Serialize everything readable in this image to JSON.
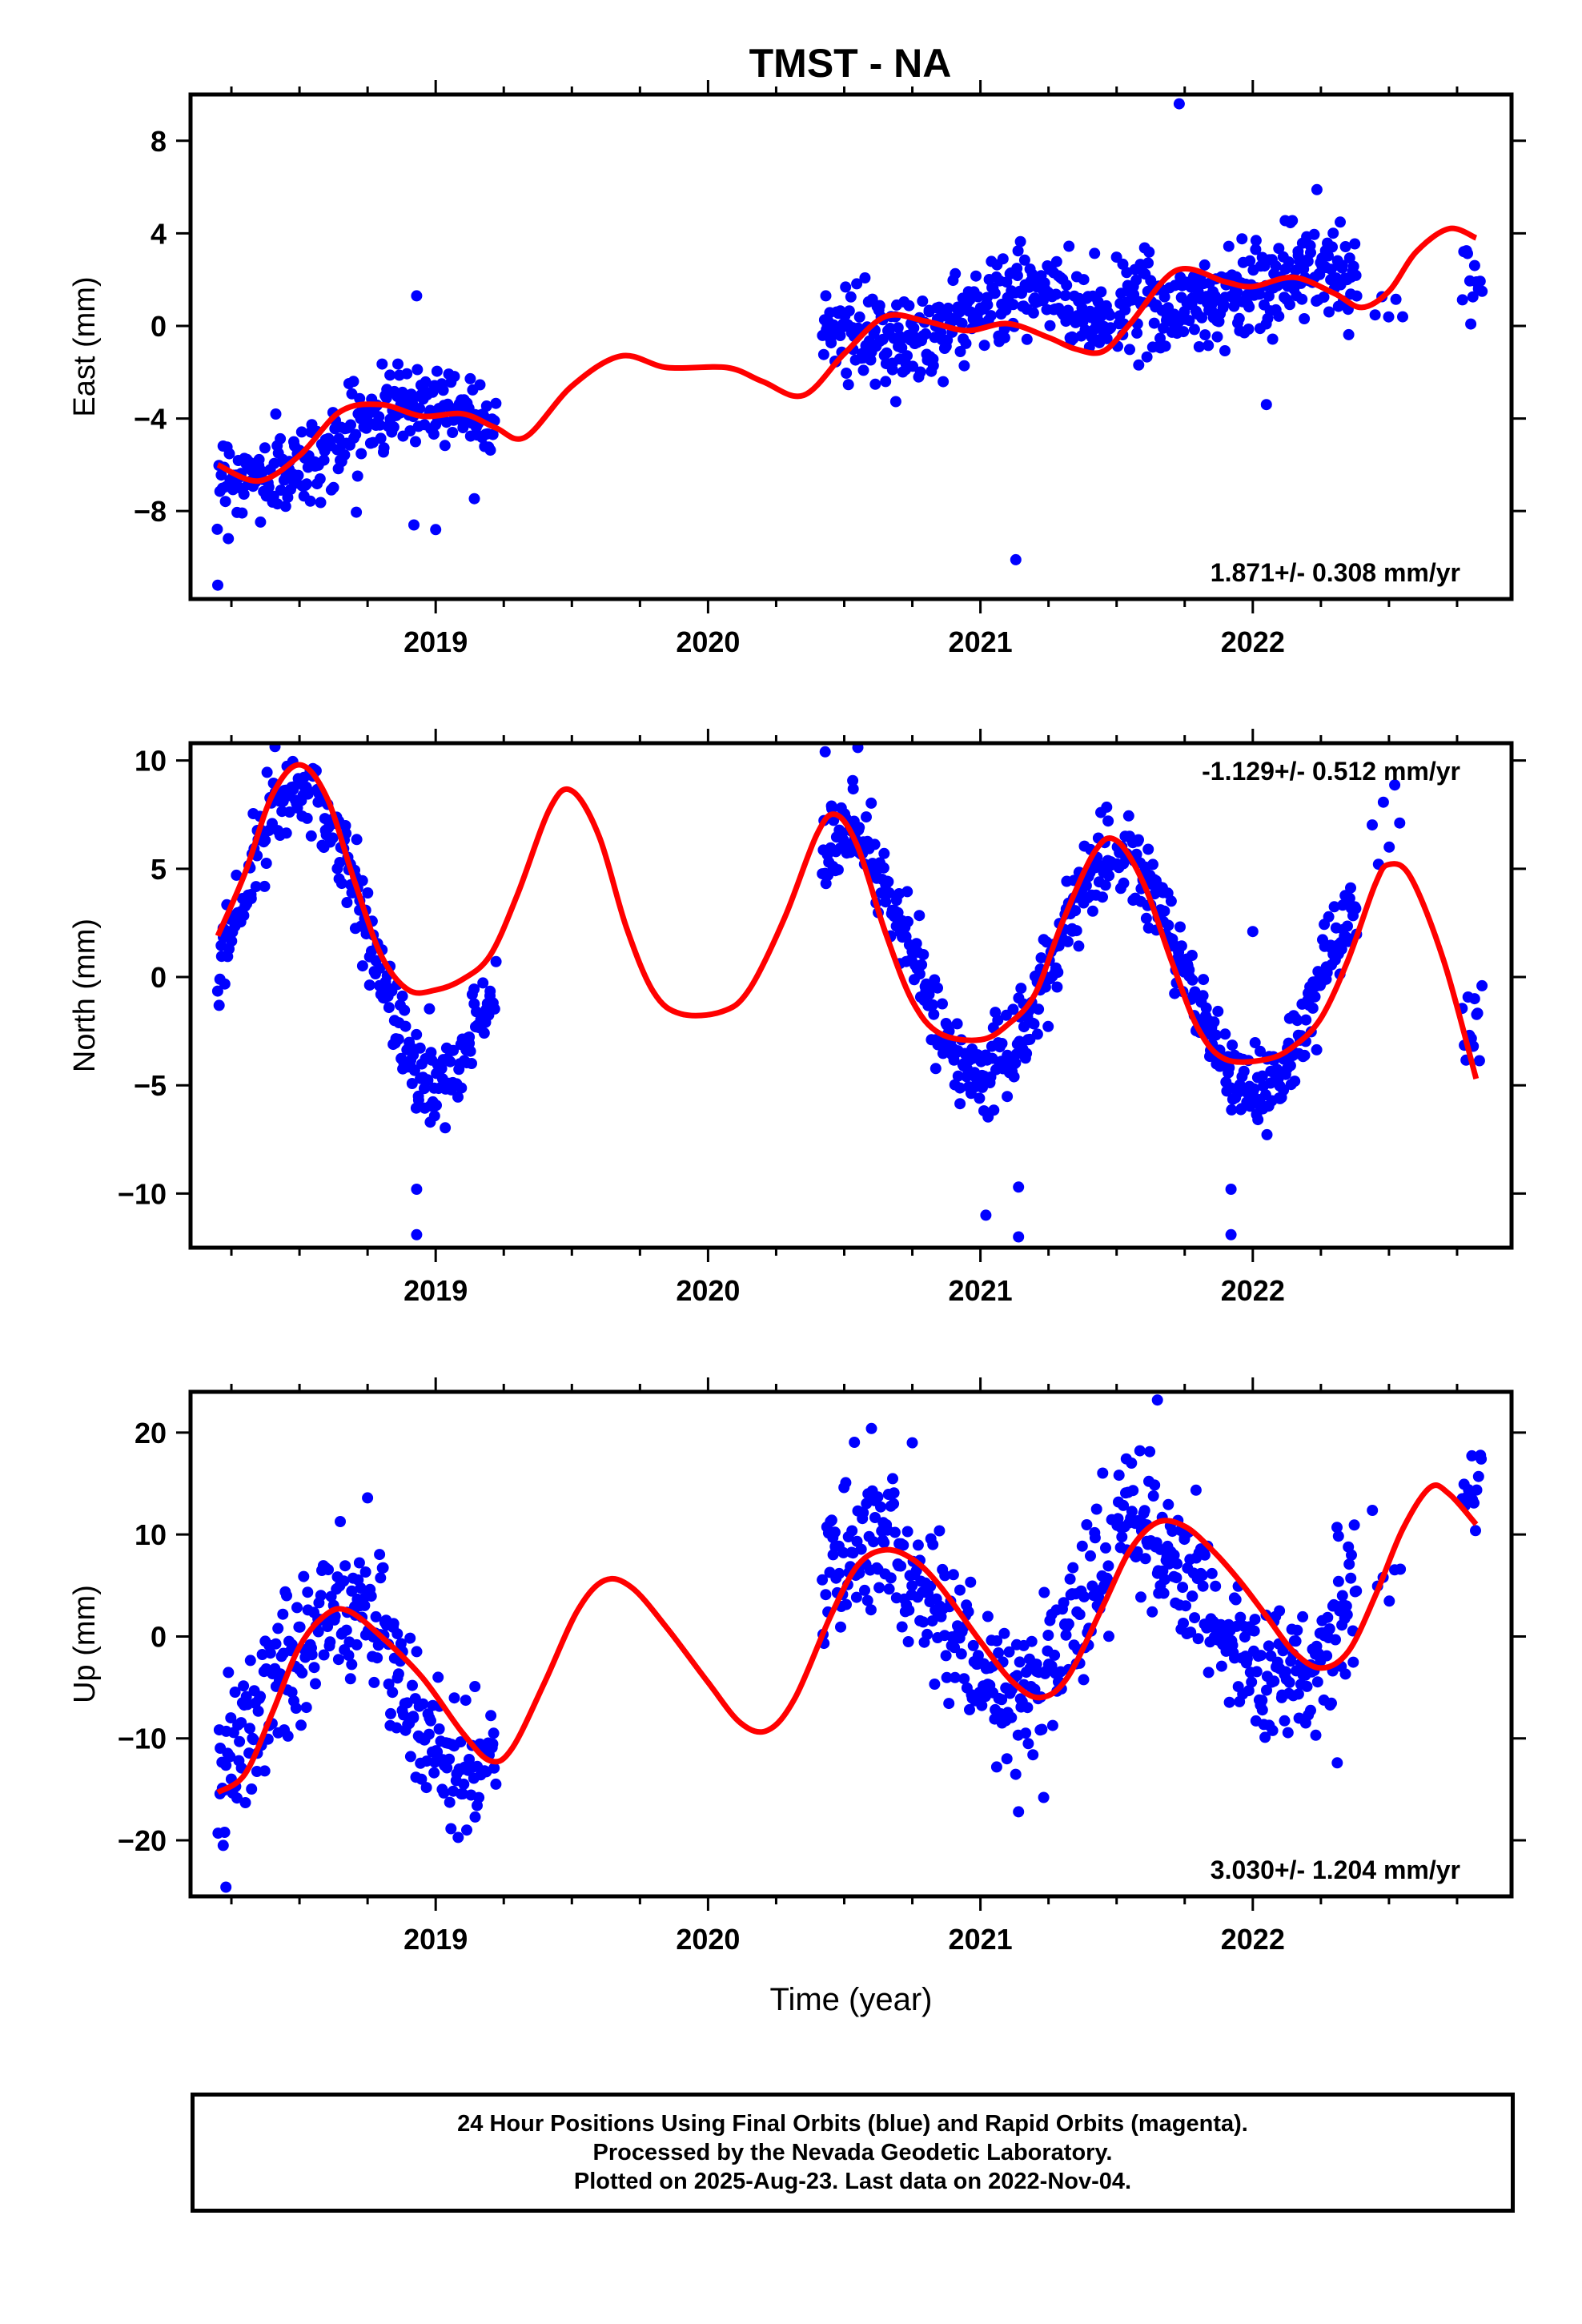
{
  "title": "TMST - NA",
  "colors": {
    "data": "#0000ff",
    "model": "#ff0000",
    "axes": "#000000"
  },
  "chart_data": [
    {
      "type": "scatter",
      "component": "east",
      "ylabel": "East (mm)",
      "xlabel": "",
      "xlim": [
        2018.1,
        2022.95
      ],
      "ylim": [
        -11.8,
        10.0
      ],
      "xticks": [
        2019,
        2020,
        2021,
        2022
      ],
      "xtick_labels": [
        "2019",
        "2020",
        "2021",
        "2022"
      ],
      "yticks": [
        8,
        4,
        0,
        -4,
        -8
      ],
      "ytick_labels": [
        "8",
        "4",
        "0",
        "−4",
        "−8"
      ],
      "rate_label": "1.871+/- 0.308 mm/yr",
      "rate_position": "bottom-right",
      "series": [
        {
          "kind": "points",
          "segments": [
            {
              "t0": 2018.2,
              "t1": 2019.22,
              "n": 260,
              "base": -6.0,
              "slope": 2.4,
              "amp": 1.0,
              "phase": 2.2,
              "noise": 0.9
            },
            {
              "t0": 2020.42,
              "t1": 2021.48,
              "n": 300,
              "base": 0.2,
              "slope": 0.3,
              "amp": 1.0,
              "phase": 0.5,
              "noise": 0.95
            },
            {
              "t0": 2021.5,
              "t1": 2022.38,
              "n": 250,
              "base": 1.6,
              "slope": 0.0,
              "amp": 0.8,
              "phase": 0.2,
              "noise": 1.1
            },
            {
              "t0": 2022.45,
              "t1": 2022.55,
              "n": 5,
              "base": 1.2,
              "slope": 0.0,
              "amp": 0.0,
              "phase": 0,
              "noise": 0.7
            },
            {
              "t0": 2022.77,
              "t1": 2022.84,
              "n": 12,
              "base": 2.0,
              "slope": 0.0,
              "amp": 0.0,
              "phase": 0,
              "noise": 1.1
            }
          ],
          "outliers": [
            [
              2018.92,
              -8.6
            ],
            [
              2019.0,
              -8.8
            ],
            [
              2018.93,
              1.3
            ],
            [
              2021.13,
              -10.1
            ],
            [
              2021.73,
              9.6
            ],
            [
              2022.05,
              -3.4
            ],
            [
              2018.2,
              -11.2
            ]
          ]
        },
        {
          "kind": "curve",
          "points": [
            [
              2018.2,
              -6.0
            ],
            [
              2018.35,
              -6.7
            ],
            [
              2018.5,
              -5.6
            ],
            [
              2018.65,
              -3.7
            ],
            [
              2018.8,
              -3.4
            ],
            [
              2018.95,
              -3.9
            ],
            [
              2019.1,
              -3.8
            ],
            [
              2019.22,
              -4.4
            ],
            [
              2019.33,
              -4.8
            ],
            [
              2019.5,
              -2.6
            ],
            [
              2019.68,
              -1.3
            ],
            [
              2019.85,
              -1.8
            ],
            [
              2020.07,
              -1.8
            ],
            [
              2020.2,
              -2.4
            ],
            [
              2020.35,
              -3.0
            ],
            [
              2020.5,
              -1.2
            ],
            [
              2020.65,
              0.4
            ],
            [
              2020.8,
              0.2
            ],
            [
              2020.95,
              -0.2
            ],
            [
              2021.1,
              0.1
            ],
            [
              2021.25,
              -0.5
            ],
            [
              2021.35,
              -1.0
            ],
            [
              2021.45,
              -1.1
            ],
            [
              2021.55,
              0.1
            ],
            [
              2021.72,
              2.4
            ],
            [
              2021.9,
              1.9
            ],
            [
              2022.0,
              1.7
            ],
            [
              2022.15,
              2.1
            ],
            [
              2022.3,
              1.4
            ],
            [
              2022.4,
              0.8
            ],
            [
              2022.5,
              1.5
            ],
            [
              2022.6,
              3.2
            ],
            [
              2022.72,
              4.2
            ],
            [
              2022.82,
              3.8
            ]
          ]
        }
      ]
    },
    {
      "type": "scatter",
      "component": "north",
      "ylabel": "North (mm)",
      "xlabel": "",
      "xlim": [
        2018.1,
        2022.95
      ],
      "ylim": [
        -12.5,
        10.8
      ],
      "xticks": [
        2019,
        2020,
        2021,
        2022
      ],
      "xtick_labels": [
        "2019",
        "2020",
        "2021",
        "2022"
      ],
      "yticks": [
        10,
        5,
        0,
        -5,
        -10
      ],
      "ytick_labels": [
        "10",
        "5",
        "0",
        "−5",
        "−10"
      ],
      "rate_label": "-1.129+/- 0.512 mm/yr",
      "rate_position": "top-right",
      "series": [
        {
          "kind": "points",
          "segments": [
            {
              "t0": 2018.2,
              "t1": 2019.22,
              "n": 280,
              "base": 2.5,
              "slope": -1.1,
              "amp": 6.5,
              "phase": 4.7,
              "noise": 1.1
            },
            {
              "t0": 2020.42,
              "t1": 2021.48,
              "n": 300,
              "base": 1.3,
              "slope": -1.1,
              "amp": 5.3,
              "phase": 4.7,
              "noise": 1.0
            },
            {
              "t0": 2021.5,
              "t1": 2022.38,
              "n": 260,
              "base": 0.5,
              "slope": -1.1,
              "amp": 5.3,
              "phase": 4.7,
              "noise": 1.0
            },
            {
              "t0": 2022.44,
              "t1": 2022.54,
              "n": 6,
              "base": 6.8,
              "slope": 0.0,
              "amp": 0.0,
              "phase": 0,
              "noise": 1.0
            },
            {
              "t0": 2022.77,
              "t1": 2022.84,
              "n": 12,
              "base": -2.5,
              "slope": 0.0,
              "amp": 0.0,
              "phase": 0,
              "noise": 1.5
            }
          ],
          "outliers": [
            [
              2018.93,
              -9.8
            ],
            [
              2018.93,
              -11.9
            ],
            [
              2018.98,
              -6.7
            ],
            [
              2021.02,
              -11.0
            ],
            [
              2021.14,
              -9.7
            ],
            [
              2021.14,
              -12.0
            ],
            [
              2021.92,
              -9.8
            ],
            [
              2021.92,
              -11.9
            ],
            [
              2022.0,
              2.1
            ],
            [
              2020.43,
              10.4
            ],
            [
              2020.55,
              10.6
            ]
          ]
        },
        {
          "kind": "curve",
          "points": [
            [
              2018.2,
              1.9
            ],
            [
              2018.3,
              4.8
            ],
            [
              2018.4,
              8.4
            ],
            [
              2018.5,
              9.8
            ],
            [
              2018.6,
              8.3
            ],
            [
              2018.7,
              4.5
            ],
            [
              2018.8,
              1.0
            ],
            [
              2018.9,
              -0.6
            ],
            [
              2019.0,
              -0.6
            ],
            [
              2019.1,
              -0.1
            ],
            [
              2019.2,
              1.0
            ],
            [
              2019.3,
              3.8
            ],
            [
              2019.42,
              7.8
            ],
            [
              2019.5,
              8.6
            ],
            [
              2019.6,
              6.5
            ],
            [
              2019.7,
              2.3
            ],
            [
              2019.8,
              -0.7
            ],
            [
              2019.9,
              -1.7
            ],
            [
              2020.05,
              -1.6
            ],
            [
              2020.15,
              -0.6
            ],
            [
              2020.28,
              2.7
            ],
            [
              2020.4,
              6.6
            ],
            [
              2020.47,
              7.5
            ],
            [
              2020.55,
              6.0
            ],
            [
              2020.65,
              2.1
            ],
            [
              2020.75,
              -1.1
            ],
            [
              2020.85,
              -2.6
            ],
            [
              2021.0,
              -2.9
            ],
            [
              2021.1,
              -2.2
            ],
            [
              2021.2,
              -0.8
            ],
            [
              2021.3,
              2.5
            ],
            [
              2021.42,
              5.8
            ],
            [
              2021.5,
              6.3
            ],
            [
              2021.6,
              4.3
            ],
            [
              2021.7,
              0.8
            ],
            [
              2021.8,
              -2.4
            ],
            [
              2021.9,
              -3.8
            ],
            [
              2022.05,
              -3.8
            ],
            [
              2022.15,
              -3.2
            ],
            [
              2022.25,
              -1.9
            ],
            [
              2022.35,
              0.8
            ],
            [
              2022.45,
              4.3
            ],
            [
              2022.5,
              5.2
            ],
            [
              2022.58,
              4.6
            ],
            [
              2022.7,
              0.8
            ],
            [
              2022.82,
              -4.7
            ]
          ]
        }
      ]
    },
    {
      "type": "scatter",
      "component": "up",
      "ylabel": "Up (mm)",
      "xlabel": "Time (year)",
      "xlim": [
        2018.1,
        2022.95
      ],
      "ylim": [
        -25.5,
        24.0
      ],
      "xticks": [
        2019,
        2020,
        2021,
        2022
      ],
      "xtick_labels": [
        "2019",
        "2020",
        "2021",
        "2022"
      ],
      "yticks": [
        20,
        10,
        0,
        -10,
        -20
      ],
      "ytick_labels": [
        "20",
        "10",
        "0",
        "−10",
        "−20"
      ],
      "rate_label": "3.030+/- 1.204 mm/yr",
      "rate_position": "bottom-right",
      "series": [
        {
          "kind": "points",
          "segments": [
            {
              "t0": 2018.2,
              "t1": 2019.22,
              "n": 280,
              "base": -5.5,
              "slope": 0.0,
              "amp": 8.5,
              "phase": 3.8,
              "noise": 3.6
            },
            {
              "t0": 2020.42,
              "t1": 2021.48,
              "n": 290,
              "base": 1.5,
              "slope": 0.0,
              "amp": 7.5,
              "phase": 4.1,
              "noise": 3.6
            },
            {
              "t0": 2021.5,
              "t1": 2022.38,
              "n": 250,
              "base": 3.2,
              "slope": 0.0,
              "amp": 7.5,
              "phase": 4.1,
              "noise": 3.6
            },
            {
              "t0": 2022.44,
              "t1": 2022.54,
              "n": 6,
              "base": 6.0,
              "slope": 0.0,
              "amp": 0.0,
              "phase": 0,
              "noise": 2.5
            },
            {
              "t0": 2022.77,
              "t1": 2022.84,
              "n": 14,
              "base": 13.0,
              "slope": 0.0,
              "amp": 0.0,
              "phase": 0,
              "noise": 3.5
            }
          ],
          "outliers": [
            [
              2018.23,
              -24.6
            ],
            [
              2018.22,
              -20.5
            ],
            [
              2018.75,
              13.6
            ],
            [
              2020.6,
              20.4
            ],
            [
              2020.75,
              19.0
            ],
            [
              2021.65,
              23.2
            ],
            [
              2021.14,
              -17.2
            ],
            [
              2022.31,
              -12.4
            ]
          ]
        },
        {
          "kind": "curve",
          "points": [
            [
              2018.2,
              -15.3
            ],
            [
              2018.3,
              -13.5
            ],
            [
              2018.4,
              -7.5
            ],
            [
              2018.5,
              -1.0
            ],
            [
              2018.6,
              2.2
            ],
            [
              2018.68,
              2.5
            ],
            [
              2018.8,
              0.0
            ],
            [
              2018.95,
              -4.0
            ],
            [
              2019.1,
              -9.5
            ],
            [
              2019.2,
              -12.2
            ],
            [
              2019.28,
              -11.0
            ],
            [
              2019.4,
              -4.5
            ],
            [
              2019.52,
              2.5
            ],
            [
              2019.62,
              5.5
            ],
            [
              2019.72,
              4.8
            ],
            [
              2019.85,
              0.8
            ],
            [
              2020.0,
              -4.5
            ],
            [
              2020.12,
              -8.5
            ],
            [
              2020.22,
              -9.2
            ],
            [
              2020.32,
              -6.0
            ],
            [
              2020.45,
              2.0
            ],
            [
              2020.55,
              7.0
            ],
            [
              2020.65,
              8.5
            ],
            [
              2020.75,
              7.6
            ],
            [
              2020.85,
              5.0
            ],
            [
              2021.0,
              -0.5
            ],
            [
              2021.12,
              -4.5
            ],
            [
              2021.22,
              -6.0
            ],
            [
              2021.32,
              -4.0
            ],
            [
              2021.45,
              3.0
            ],
            [
              2021.55,
              8.5
            ],
            [
              2021.65,
              11.2
            ],
            [
              2021.75,
              10.8
            ],
            [
              2021.85,
              8.5
            ],
            [
              2021.95,
              5.5
            ],
            [
              2022.05,
              2.0
            ],
            [
              2022.15,
              -1.5
            ],
            [
              2022.25,
              -3.1
            ],
            [
              2022.35,
              -1.5
            ],
            [
              2022.45,
              4.0
            ],
            [
              2022.55,
              10.5
            ],
            [
              2022.65,
              14.6
            ],
            [
              2022.72,
              14.0
            ],
            [
              2022.82,
              11.0
            ]
          ]
        }
      ]
    }
  ],
  "caption": {
    "line1": "24 Hour Positions Using Final Orbits (blue) and Rapid Orbits (magenta).",
    "line2": "Processed by the Nevada Geodetic Laboratory.",
    "line3": "Plotted on 2025-Aug-23. Last data on 2022-Nov-04."
  }
}
